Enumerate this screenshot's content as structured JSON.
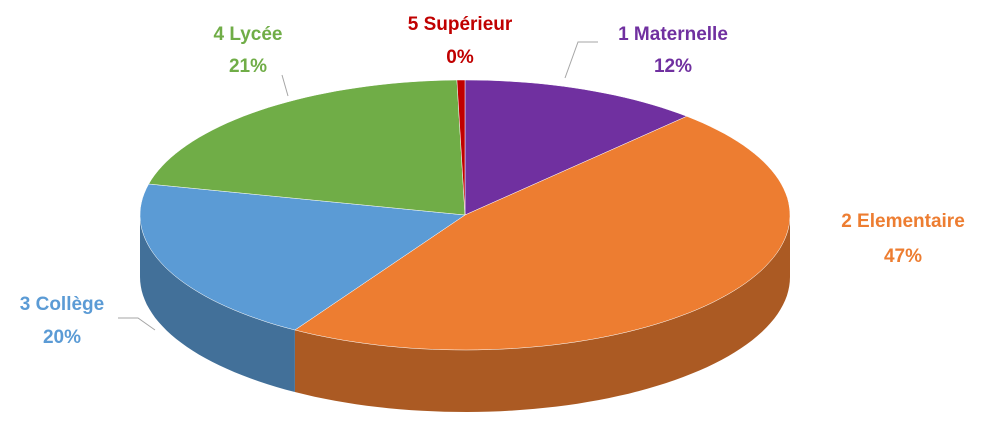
{
  "chart_data": {
    "type": "pie3d",
    "categories": [
      "1 Maternelle",
      "2 Elementaire",
      "3 Collège",
      "4 Lycée",
      "5 Supérieur"
    ],
    "values": [
      12,
      47,
      20,
      21,
      0.4
    ],
    "value_labels": [
      "12%",
      "47%",
      "20%",
      "21%",
      "0%"
    ],
    "colors": [
      "#7030a0",
      "#ed7d31",
      "#5b9bd5",
      "#70ad47",
      "#c00000"
    ]
  }
}
